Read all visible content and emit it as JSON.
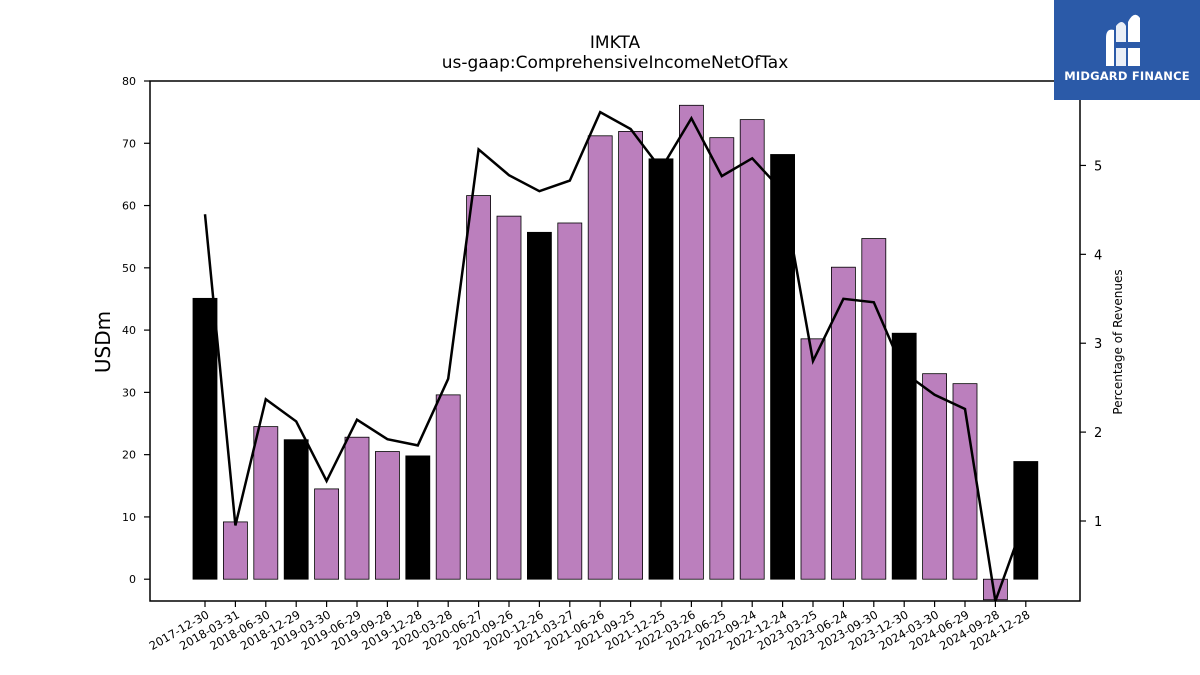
{
  "chart_data": {
    "type": "bar",
    "title": "IMKTA",
    "subtitle": "us-gaap:ComprehensiveIncomeNetOfTax",
    "ylabel": "USDm",
    "y2label": "Percentage of Revenues",
    "ylim": [
      -3.5,
      80
    ],
    "y2lim": [
      0.1,
      5.95
    ],
    "yticks": [
      0,
      10,
      20,
      30,
      40,
      50,
      60,
      70,
      80
    ],
    "y2ticks": [
      1,
      2,
      3,
      4,
      5
    ],
    "categories": [
      "2017-12-30",
      "2018-03-31",
      "2018-06-30",
      "2018-12-29",
      "2019-03-30",
      "2019-06-29",
      "2019-09-28",
      "2019-12-28",
      "2020-03-28",
      "2020-06-27",
      "2020-09-26",
      "2020-12-26",
      "2021-03-27",
      "2021-06-26",
      "2021-09-25",
      "2021-12-25",
      "2022-03-26",
      "2022-06-25",
      "2022-09-24",
      "2022-12-24",
      "2023-03-25",
      "2023-06-24",
      "2023-09-30",
      "2023-12-30",
      "2024-03-30",
      "2024-06-29",
      "2024-09-28",
      "2024-12-28"
    ],
    "series": [
      {
        "type": "bar",
        "values": [
          45.1,
          9.2,
          24.5,
          22.4,
          14.5,
          22.8,
          20.5,
          19.8,
          29.6,
          61.6,
          58.3,
          55.7,
          57.2,
          71.2,
          71.9,
          67.5,
          76.1,
          70.9,
          73.8,
          68.2,
          38.6,
          50.1,
          54.7,
          39.5,
          33.0,
          31.4,
          -3.3,
          18.9
        ],
        "highlight": [
          true,
          false,
          false,
          true,
          false,
          false,
          false,
          true,
          false,
          false,
          false,
          true,
          false,
          false,
          false,
          true,
          false,
          false,
          false,
          true,
          false,
          false,
          false,
          true,
          false,
          false,
          false,
          true
        ]
      },
      {
        "type": "line",
        "axis": "right",
        "values": [
          4.45,
          0.95,
          2.37,
          2.12,
          1.45,
          2.14,
          1.92,
          1.85,
          2.6,
          5.18,
          4.89,
          4.71,
          4.83,
          5.6,
          5.41,
          4.96,
          5.53,
          4.88,
          5.08,
          4.71,
          2.8,
          3.5,
          3.46,
          2.67,
          2.42,
          2.26,
          0.1,
          1.05
        ]
      }
    ],
    "colors": {
      "bar": "#bb7fbd",
      "bar_highlight": "#000000",
      "line": "#000000"
    },
    "grid": false
  },
  "logo": {
    "text": "MIDGARD FINANCE",
    "background": "#2b5aa8"
  }
}
